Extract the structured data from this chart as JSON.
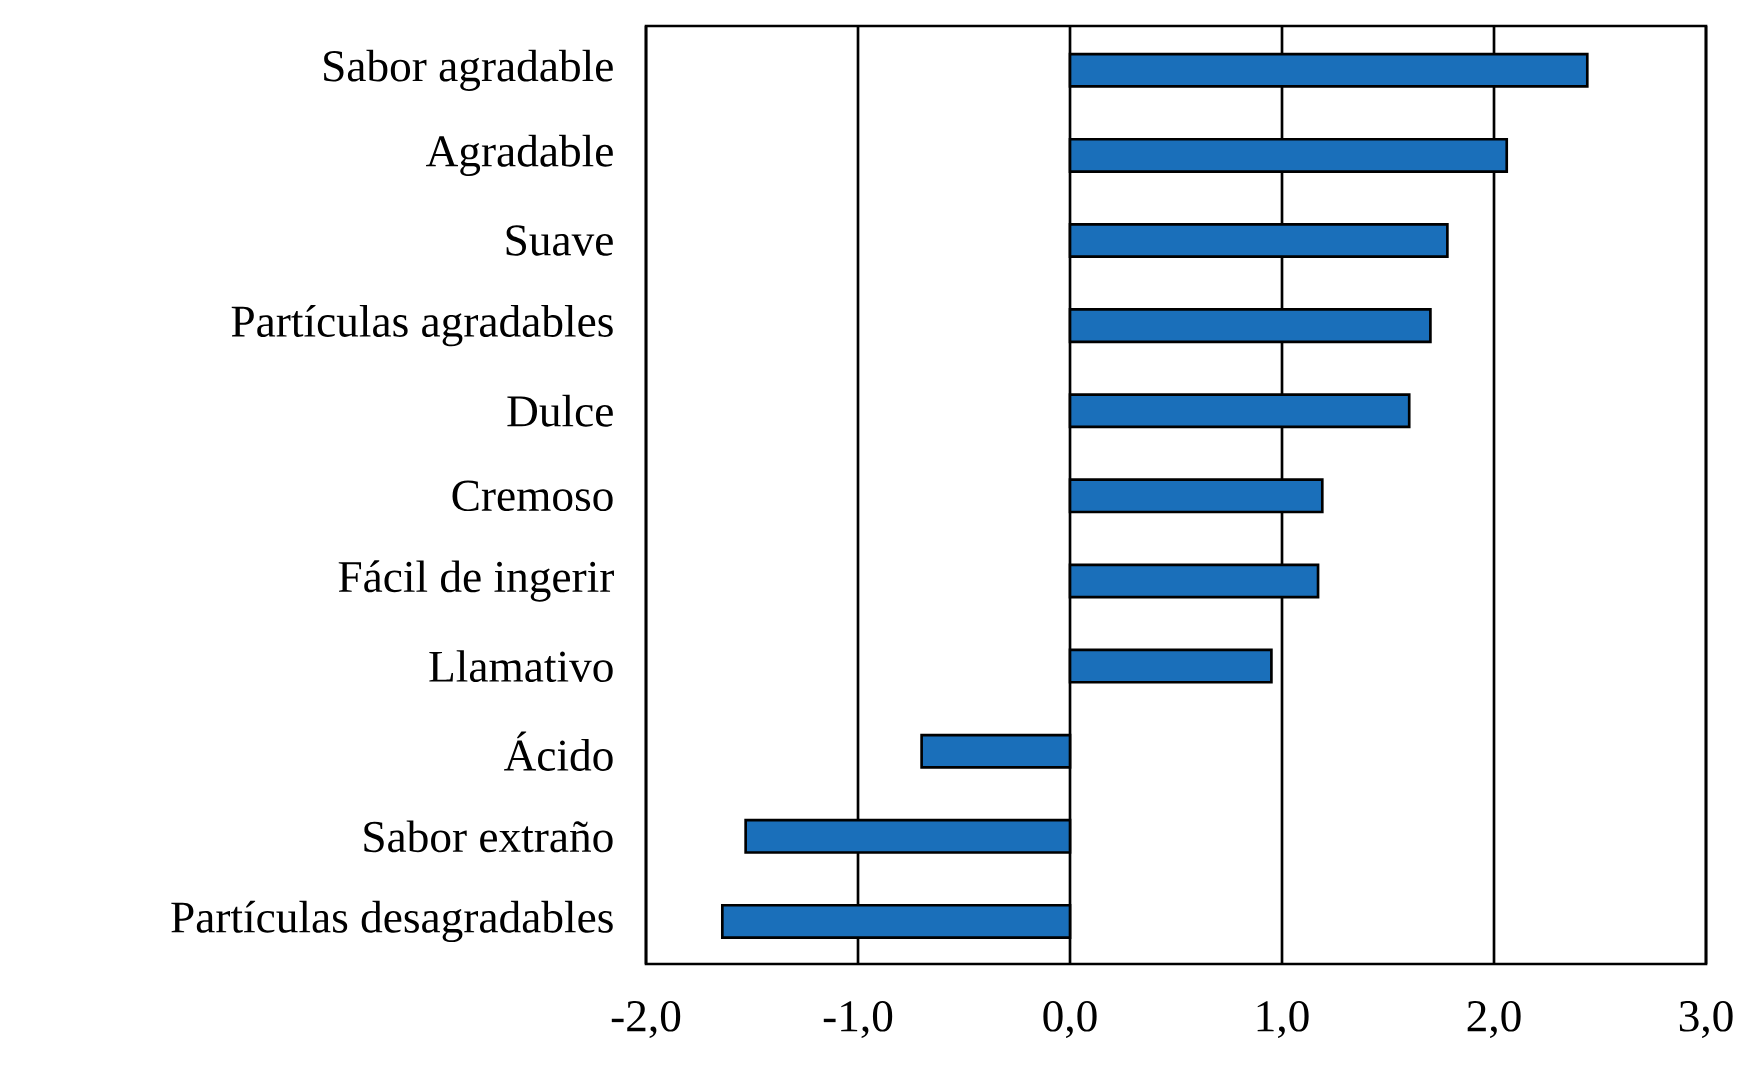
{
  "chart_data": {
    "type": "bar",
    "orientation": "horizontal",
    "categories": [
      "Sabor agradable",
      "Agradable",
      "Suave",
      "Partículas agradables",
      "Dulce",
      "Cremoso",
      "Fácil de ingerir",
      "Llamativo",
      "Ácido",
      "Sabor extraño",
      "Partículas desagradables"
    ],
    "values": [
      2.44,
      2.06,
      1.78,
      1.7,
      1.6,
      1.19,
      1.17,
      0.95,
      -0.7,
      -1.53,
      -1.64
    ],
    "color": "#1a6fba",
    "xlim": [
      -2,
      3
    ],
    "xticks": [
      {
        "value": -2,
        "label": "-2,0"
      },
      {
        "value": -1,
        "label": "-1,0"
      },
      {
        "value": 0,
        "label": "0,0"
      },
      {
        "value": 1,
        "label": "1,0"
      },
      {
        "value": 2,
        "label": "2,0"
      },
      {
        "value": 3,
        "label": "3,0"
      }
    ],
    "grid": "x"
  }
}
